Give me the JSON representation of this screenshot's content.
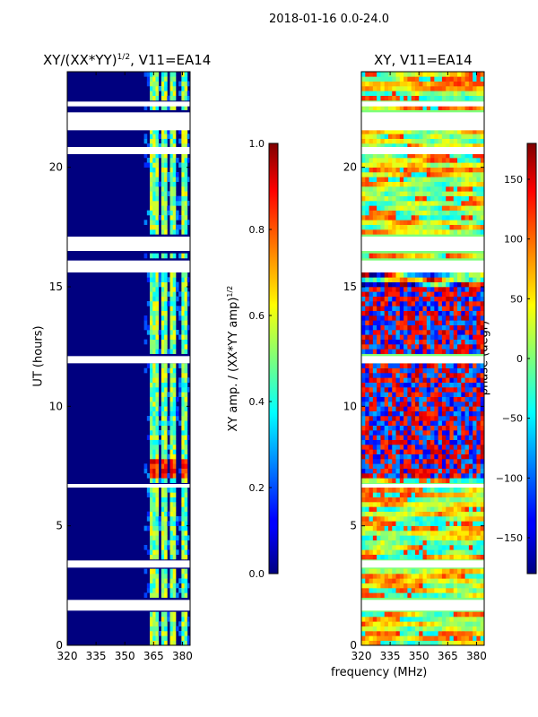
{
  "suptitle": "2018-01-16 0.0-24.0",
  "xlabel_shared": "frequency (MHz)",
  "chart_data": [
    {
      "type": "heatmap",
      "title": "XY/(XX*YY)^1/2, V11=EA14",
      "title_main": "XY/(XX*YY)",
      "title_exp": "1/2",
      "title_tail": ", V11=EA14",
      "xlabel": "frequency (MHz)",
      "ylabel": "UT (hours)",
      "xlim": [
        320,
        384
      ],
      "ylim": [
        0,
        24
      ],
      "xticks": [
        320,
        335,
        350,
        365,
        380
      ],
      "yticks": [
        0,
        5,
        10,
        15,
        20
      ],
      "colorbar": {
        "label_main": "XY amp. / (XX*YY amp)",
        "label_exp": "1/2",
        "range": [
          0.0,
          1.0
        ],
        "ticks": [
          "0.0",
          "0.2",
          "0.4",
          "0.6",
          "0.8",
          "1.0"
        ],
        "tick_values": [
          0.0,
          0.2,
          0.4,
          0.6,
          0.8,
          1.0
        ]
      },
      "flagged_ut_bands": [
        [
          1.45,
          1.9
        ],
        [
          3.25,
          3.55
        ],
        [
          6.6,
          6.75
        ],
        [
          11.8,
          12.1
        ],
        [
          15.6,
          16.1
        ],
        [
          16.5,
          17.1
        ],
        [
          20.55,
          20.85
        ],
        [
          21.55,
          22.3
        ],
        [
          22.55,
          22.75
        ]
      ],
      "bright_channels_mhz": [
        [
          362,
          366
        ],
        [
          368,
          371
        ],
        [
          373,
          376
        ],
        [
          379,
          381
        ]
      ],
      "high_amp_ut_range": [
        7.0,
        7.8
      ]
    },
    {
      "type": "heatmap",
      "title": "XY, V11=EA14",
      "xlabel": "frequency (MHz)",
      "ylabel": "",
      "xlim": [
        320,
        384
      ],
      "ylim": [
        0,
        24
      ],
      "xticks": [
        320,
        335,
        350,
        365,
        380
      ],
      "yticks": [
        0,
        5,
        10,
        15,
        20
      ],
      "colorbar": {
        "label": "phase (degr)",
        "range": [
          -180,
          180
        ],
        "ticks": [
          "−150",
          "−100",
          "−50",
          "0",
          "50",
          "100",
          "150"
        ],
        "tick_values": [
          -150,
          -100,
          -50,
          0,
          50,
          100,
          150
        ]
      },
      "flagged_ut_bands": [
        [
          1.45,
          1.9
        ],
        [
          3.25,
          3.55
        ],
        [
          6.6,
          6.75
        ],
        [
          11.8,
          12.1
        ],
        [
          15.6,
          16.1
        ],
        [
          16.5,
          17.1
        ],
        [
          20.55,
          20.85
        ],
        [
          21.55,
          22.3
        ],
        [
          22.55,
          22.75
        ]
      ]
    }
  ]
}
